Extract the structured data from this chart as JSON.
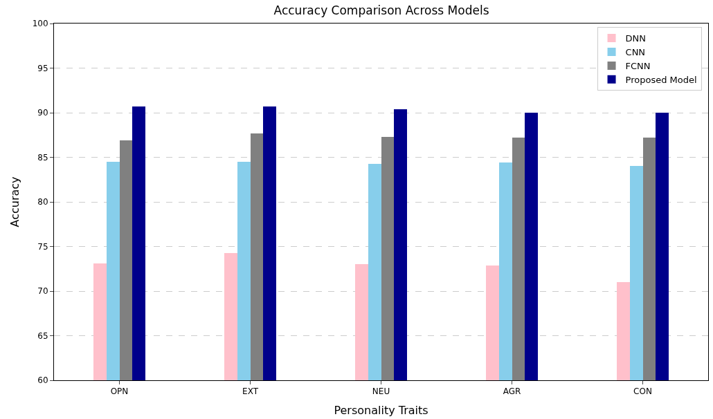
{
  "chart_data": {
    "type": "bar",
    "title": "Accuracy Comparison Across Models",
    "xlabel": "Personality Traits",
    "ylabel": "Accuracy",
    "categories": [
      "OPN",
      "EXT",
      "NEU",
      "AGR",
      "CON"
    ],
    "series": [
      {
        "name": "DNN",
        "color": "#ffc0cb",
        "values": [
          73.1,
          74.3,
          73.0,
          72.9,
          71.0
        ]
      },
      {
        "name": "CNN",
        "color": "#87ceeb",
        "values": [
          84.5,
          84.5,
          84.3,
          84.4,
          84.0
        ]
      },
      {
        "name": "FCNN",
        "color": "#808080",
        "values": [
          86.9,
          87.7,
          87.3,
          87.2,
          87.2
        ]
      },
      {
        "name": "Proposed Model",
        "color": "#00008b",
        "values": [
          90.7,
          90.7,
          90.4,
          90.0,
          90.0
        ]
      }
    ],
    "ylim": [
      60,
      100
    ],
    "yticks": [
      60,
      65,
      70,
      75,
      80,
      85,
      90,
      95,
      100
    ],
    "grid": "y",
    "legend": "top right"
  }
}
